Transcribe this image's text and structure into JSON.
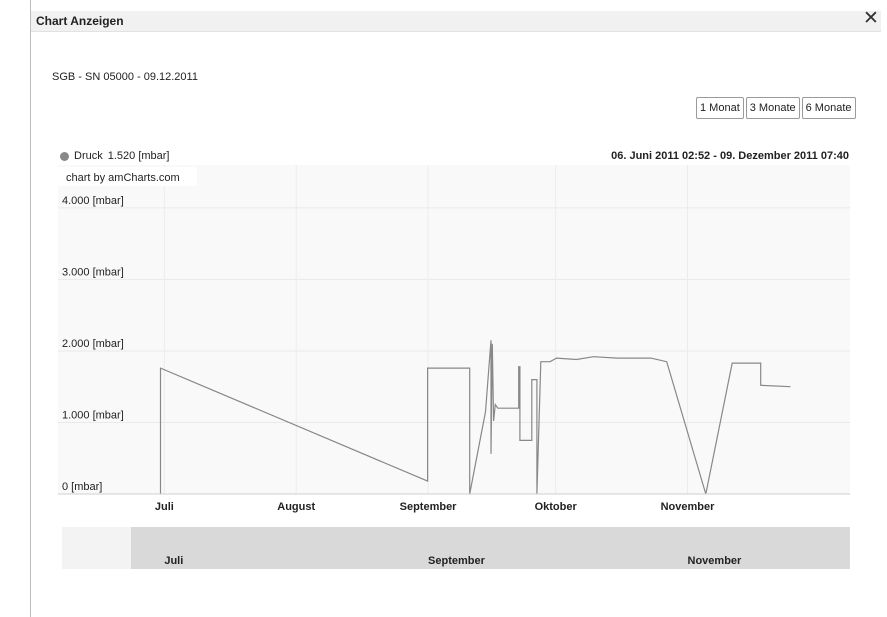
{
  "window": {
    "title": "Chart Anzeigen",
    "close_symbol": "✕"
  },
  "subtitle": "SGB - SN 05000 - 09.12.2011",
  "range_buttons": [
    "1 Monat",
    "3 Monate",
    "6 Monate"
  ],
  "legend": {
    "series_name": "Druck",
    "value": "1.520 [mbar]",
    "color": "#888888"
  },
  "date_range": "06. Juni 2011 02:52 - 09. Dezember 2011 07:40",
  "credit": "chart by amCharts.com",
  "scrollbar_labels": [
    {
      "label": "Juli",
      "day": 25
    },
    {
      "label": "September",
      "day": 87
    },
    {
      "label": "November",
      "day": 148
    }
  ],
  "chart_data": {
    "type": "line",
    "title": "",
    "xlabel": "",
    "ylabel": "",
    "x_unit": "days since 06. Juni 2011 02:52",
    "x_range": [
      0,
      186.2
    ],
    "ylim": [
      0,
      4600
    ],
    "y_ticks": [
      {
        "value": 0,
        "label": "0 [mbar]"
      },
      {
        "value": 1000,
        "label": "1.000 [mbar]"
      },
      {
        "value": 2000,
        "label": "2.000 [mbar]"
      },
      {
        "value": 3000,
        "label": "3.000 [mbar]"
      },
      {
        "value": 4000,
        "label": "4.000 [mbar]"
      }
    ],
    "x_month_labels": [
      {
        "label": "Juli",
        "day": 25
      },
      {
        "label": "August",
        "day": 56
      },
      {
        "label": "September",
        "day": 87
      },
      {
        "label": "Oktober",
        "day": 117
      },
      {
        "label": "November",
        "day": 148
      }
    ],
    "grid": true,
    "legend_position": "top-left",
    "series": [
      {
        "name": "Druck",
        "color": "#888888",
        "points": [
          [
            24.1,
            0
          ],
          [
            24.1,
            1760
          ],
          [
            86.9,
            180
          ],
          [
            86.9,
            1760
          ],
          [
            96.8,
            1760
          ],
          [
            96.8,
            0
          ],
          [
            100.5,
            1150
          ],
          [
            101.8,
            2150
          ],
          [
            101.8,
            560
          ],
          [
            102.1,
            2100
          ],
          [
            102.4,
            1020
          ],
          [
            102.8,
            1250
          ],
          [
            103.4,
            1200
          ],
          [
            108.3,
            1200
          ],
          [
            108.3,
            1780
          ],
          [
            108.6,
            1780
          ],
          [
            108.6,
            750
          ],
          [
            111.4,
            750
          ],
          [
            111.4,
            1600
          ],
          [
            112.6,
            1600
          ],
          [
            112.6,
            0
          ],
          [
            113.5,
            1850
          ],
          [
            115.7,
            1850
          ],
          [
            117.2,
            1900
          ],
          [
            121.9,
            1880
          ],
          [
            125.9,
            1920
          ],
          [
            131.4,
            1900
          ],
          [
            139.4,
            1900
          ],
          [
            143.1,
            1850
          ],
          [
            152.3,
            0
          ],
          [
            158.5,
            1830
          ],
          [
            165.2,
            1830
          ],
          [
            165.2,
            1520
          ],
          [
            172.2,
            1500
          ]
        ]
      }
    ]
  }
}
